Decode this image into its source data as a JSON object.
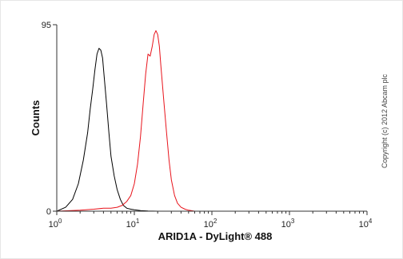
{
  "chart_data": {
    "type": "line",
    "title": "",
    "xlabel": "ARID1A - DyLight® 488",
    "ylabel": "Counts",
    "x_scale": "log",
    "xlim": [
      1,
      10000
    ],
    "ylim": [
      0,
      95
    ],
    "x_ticks": [
      {
        "base": "10",
        "exp": "0"
      },
      {
        "base": "10",
        "exp": "1"
      },
      {
        "base": "10",
        "exp": "2"
      },
      {
        "base": "10",
        "exp": "3"
      },
      {
        "base": "10",
        "exp": "4"
      }
    ],
    "y_ticks": [
      "0",
      "95"
    ],
    "grid": false,
    "series": [
      {
        "color": "#000000",
        "x": [
          1.0,
          1.3,
          1.6,
          1.9,
          2.2,
          2.5,
          2.7,
          2.9,
          3.1,
          3.3,
          3.5,
          3.7,
          3.9,
          4.1,
          4.4,
          4.7,
          5.0,
          5.5,
          6.0,
          6.6,
          7.2,
          8.0,
          9.0,
          10.0,
          11.0,
          12.0,
          13.5,
          15.0,
          20.0,
          40.0,
          100.0,
          1000.0,
          10000.0
        ],
        "y": [
          0,
          2,
          6,
          14,
          26,
          40,
          52,
          62,
          72,
          80,
          83,
          82,
          78,
          68,
          54,
          40,
          28,
          18,
          11,
          6,
          3,
          1.5,
          1,
          0.7,
          0.5,
          0.3,
          0.2,
          0.1,
          0,
          0,
          0,
          0,
          0
        ]
      },
      {
        "color": "#e8141c",
        "x": [
          1.0,
          2.0,
          3.0,
          4.0,
          5.0,
          6.0,
          7.0,
          8.0,
          9.0,
          10.0,
          11.0,
          12.0,
          13.0,
          14.0,
          15.0,
          16.0,
          17.0,
          18.0,
          19.0,
          20.0,
          21.0,
          22.0,
          24.0,
          26.0,
          28.0,
          30.0,
          33.0,
          36.0,
          40.0,
          45.0,
          50.0,
          60.0,
          100.0,
          1000.0,
          10000.0
        ],
        "y": [
          0,
          0.5,
          1,
          1.5,
          1.5,
          2,
          3,
          5,
          8,
          14,
          24,
          38,
          55,
          70,
          80,
          79,
          84,
          90,
          92,
          90,
          84,
          74,
          56,
          40,
          26,
          16,
          8,
          4,
          2,
          1,
          0.5,
          0,
          0,
          0,
          0
        ]
      }
    ]
  },
  "copyright_text": "Copyright (c) 2012 Abcam plc"
}
